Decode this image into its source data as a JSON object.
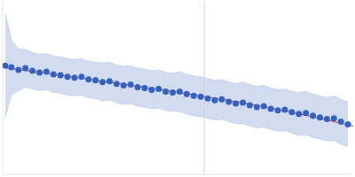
{
  "chart_data": {
    "type": "scatter",
    "tick_labels": false,
    "xlim": [
      0,
      400
    ],
    "ylim": [
      0,
      200
    ],
    "xticks": [],
    "yticks": [],
    "vline": 230,
    "series": [
      {
        "type": "scatter",
        "color": "#3462c0",
        "marker": "circle",
        "x": [
          3,
          10,
          18,
          26,
          34,
          42,
          50,
          58,
          66,
          74,
          82,
          90,
          98,
          106,
          114,
          122,
          130,
          138,
          146,
          154,
          162,
          170,
          178,
          186,
          194,
          202,
          210,
          218,
          226,
          234,
          242,
          250,
          258,
          266,
          274,
          282,
          290,
          298,
          306,
          314,
          322,
          330,
          338,
          346,
          354,
          362,
          370,
          378,
          386,
          394
        ],
        "values": [
          126,
          124,
          121,
          123,
          120,
          118,
          119,
          116,
          115,
          113,
          112,
          113,
          110,
          109,
          107,
          108,
          105,
          103,
          104,
          101,
          100,
          98,
          99,
          96,
          95,
          96,
          93,
          91,
          90,
          88,
          86,
          87,
          84,
          82,
          83,
          80,
          78,
          79,
          76,
          74,
          75,
          72,
          70,
          71,
          68,
          66,
          64,
          65,
          61,
          58
        ],
        "error": [
          60,
          32,
          24,
          22,
          21,
          21,
          21,
          21,
          21,
          21,
          21,
          21,
          21,
          21,
          22,
          22,
          22,
          22,
          22,
          22,
          22,
          22,
          22,
          22,
          22,
          23,
          23,
          23,
          23,
          23,
          23,
          23,
          23,
          23,
          24,
          24,
          24,
          24,
          24,
          24,
          24,
          24,
          25,
          25,
          25,
          25,
          25,
          26,
          26,
          26
        ],
        "error_color": "#c5d3ec"
      },
      {
        "type": "line",
        "color": "#e03030",
        "line_style": "solid",
        "x": [
          0,
          100,
          200,
          300,
          400
        ],
        "values": [
          124,
          110,
          95,
          78,
          56
        ]
      }
    ]
  }
}
